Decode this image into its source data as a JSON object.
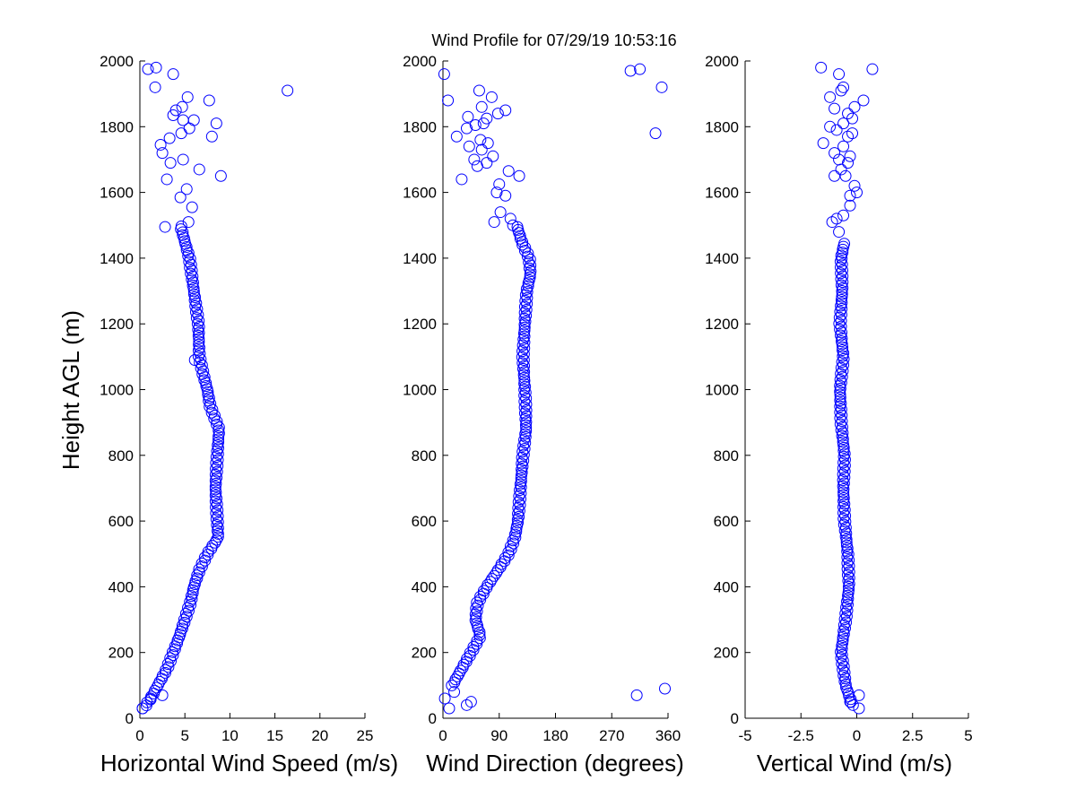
{
  "figure": {
    "title": "Wind Profile for  07/29/19 10:53:16",
    "marker_color": "#0000ff",
    "axis_color": "#000000",
    "background": "#ffffff"
  },
  "chart_data": [
    {
      "type": "scatter",
      "id": "speed",
      "title": "Wind Profile for  07/29/19 10:53:16",
      "xlabel": "Horizontal Wind Speed (m/s)",
      "ylabel": "Height AGL (m)",
      "xlim": [
        0,
        25
      ],
      "ylim": [
        0,
        2000
      ],
      "xticks": [
        0,
        5,
        10,
        15,
        20,
        25
      ],
      "xtick_labels": [
        "0",
        "5",
        "10",
        "15",
        "20",
        "25"
      ],
      "yticks": [
        0,
        200,
        400,
        600,
        800,
        1000,
        1200,
        1400,
        1600,
        1800,
        2000
      ],
      "ytick_labels": [
        "0",
        "200",
        "400",
        "600",
        "800",
        "1000",
        "1200",
        "1400",
        "1600",
        "1800",
        "2000"
      ],
      "marker": "open-circle",
      "profile": [
        [
          30,
          0.4
        ],
        [
          60,
          1.2
        ],
        [
          100,
          2.0
        ],
        [
          150,
          3.0
        ],
        [
          200,
          3.7
        ],
        [
          250,
          4.4
        ],
        [
          300,
          5.0
        ],
        [
          350,
          5.6
        ],
        [
          400,
          6.0
        ],
        [
          450,
          6.6
        ],
        [
          500,
          7.5
        ],
        [
          550,
          8.7
        ],
        [
          600,
          8.6
        ],
        [
          700,
          8.4
        ],
        [
          800,
          8.6
        ],
        [
          880,
          8.8
        ],
        [
          950,
          7.8
        ],
        [
          1000,
          7.5
        ],
        [
          1050,
          7.0
        ],
        [
          1100,
          6.6
        ],
        [
          1200,
          6.5
        ],
        [
          1300,
          6.0
        ],
        [
          1400,
          5.5
        ],
        [
          1450,
          5.0
        ],
        [
          1500,
          4.5
        ]
      ],
      "step": 9,
      "points": [
        [
          0.3,
          30
        ],
        [
          1.2,
          60
        ],
        [
          2.5,
          70
        ],
        [
          6.1,
          1090
        ],
        [
          2.8,
          1495
        ],
        [
          5.4,
          1510
        ],
        [
          5.8,
          1555
        ],
        [
          4.5,
          1585
        ],
        [
          5.2,
          1610
        ],
        [
          3.0,
          1640
        ],
        [
          6.6,
          1670
        ],
        [
          9.0,
          1650
        ],
        [
          4.8,
          1700
        ],
        [
          3.4,
          1690
        ],
        [
          2.5,
          1720
        ],
        [
          2.3,
          1745
        ],
        [
          3.3,
          1765
        ],
        [
          4.6,
          1780
        ],
        [
          5.5,
          1795
        ],
        [
          8.0,
          1770
        ],
        [
          8.5,
          1810
        ],
        [
          4.8,
          1820
        ],
        [
          6.0,
          1820
        ],
        [
          3.7,
          1835
        ],
        [
          4.0,
          1850
        ],
        [
          4.7,
          1860
        ],
        [
          5.3,
          1890
        ],
        [
          7.7,
          1880
        ],
        [
          16.4,
          1910
        ],
        [
          1.7,
          1920
        ],
        [
          3.7,
          1960
        ],
        [
          0.9,
          1975
        ],
        [
          1.8,
          1980
        ]
      ]
    },
    {
      "type": "scatter",
      "id": "direction",
      "xlabel": "Wind Direction (degrees)",
      "ylabel": "",
      "xlim": [
        0,
        360
      ],
      "ylim": [
        0,
        2000
      ],
      "xticks": [
        0,
        90,
        180,
        270,
        360
      ],
      "xtick_labels": [
        "0",
        "90",
        "180",
        "270",
        "360"
      ],
      "yticks": [
        0,
        200,
        400,
        600,
        800,
        1000,
        1200,
        1400,
        1600,
        1800,
        2000
      ],
      "ytick_labels": [
        "0",
        "200",
        "400",
        "600",
        "800",
        "1000",
        "1200",
        "1400",
        "1600",
        "1800",
        "2000"
      ],
      "marker": "open-circle",
      "profile": [
        [
          100,
          15
        ],
        [
          150,
          30
        ],
        [
          200,
          45
        ],
        [
          250,
          60
        ],
        [
          300,
          52
        ],
        [
          350,
          55
        ],
        [
          400,
          70
        ],
        [
          450,
          88
        ],
        [
          500,
          105
        ],
        [
          550,
          115
        ],
        [
          600,
          120
        ],
        [
          700,
          124
        ],
        [
          800,
          128
        ],
        [
          880,
          133
        ],
        [
          950,
          132
        ],
        [
          1000,
          131
        ],
        [
          1100,
          128
        ],
        [
          1200,
          131
        ],
        [
          1300,
          134
        ],
        [
          1350,
          140
        ],
        [
          1400,
          138
        ],
        [
          1450,
          126
        ],
        [
          1500,
          118
        ]
      ],
      "step": 9,
      "points": [
        [
          10,
          30
        ],
        [
          18,
          80
        ],
        [
          3,
          60
        ],
        [
          45,
          50
        ],
        [
          38,
          40
        ],
        [
          310,
          70
        ],
        [
          355,
          90
        ],
        [
          82,
          1510
        ],
        [
          92,
          1540
        ],
        [
          108,
          1520
        ],
        [
          112,
          1500
        ],
        [
          100,
          1590
        ],
        [
          86,
          1600
        ],
        [
          90,
          1625
        ],
        [
          105,
          1665
        ],
        [
          122,
          1650
        ],
        [
          30,
          1640
        ],
        [
          50,
          1700
        ],
        [
          55,
          1680
        ],
        [
          70,
          1690
        ],
        [
          80,
          1710
        ],
        [
          62,
          1730
        ],
        [
          72,
          1750
        ],
        [
          42,
          1740
        ],
        [
          60,
          1760
        ],
        [
          22,
          1770
        ],
        [
          38,
          1795
        ],
        [
          52,
          1805
        ],
        [
          65,
          1810
        ],
        [
          70,
          1825
        ],
        [
          40,
          1830
        ],
        [
          88,
          1840
        ],
        [
          100,
          1850
        ],
        [
          62,
          1860
        ],
        [
          78,
          1890
        ],
        [
          58,
          1910
        ],
        [
          8,
          1880
        ],
        [
          340,
          1780
        ],
        [
          350,
          1920
        ],
        [
          300,
          1970
        ],
        [
          315,
          1975
        ],
        [
          2,
          1960
        ]
      ]
    },
    {
      "type": "scatter",
      "id": "vertical",
      "xlabel": "Vertical Wind (m/s)",
      "ylabel": "",
      "xlim": [
        -5,
        5
      ],
      "ylim": [
        0,
        2000
      ],
      "xticks": [
        -5,
        -2.5,
        0,
        2.5,
        5
      ],
      "xtick_labels": [
        "-5",
        "-2.5",
        "0",
        "2.5",
        "5"
      ],
      "yticks": [
        0,
        200,
        400,
        600,
        800,
        1000,
        1200,
        1400,
        1600,
        1800,
        2000
      ],
      "ytick_labels": [
        "0",
        "200",
        "400",
        "600",
        "800",
        "1000",
        "1200",
        "1400",
        "1600",
        "1800",
        "2000"
      ],
      "marker": "open-circle",
      "profile": [
        [
          40,
          -0.2
        ],
        [
          100,
          -0.5
        ],
        [
          150,
          -0.6
        ],
        [
          200,
          -0.7
        ],
        [
          250,
          -0.6
        ],
        [
          300,
          -0.5
        ],
        [
          400,
          -0.35
        ],
        [
          500,
          -0.4
        ],
        [
          600,
          -0.55
        ],
        [
          700,
          -0.6
        ],
        [
          800,
          -0.55
        ],
        [
          900,
          -0.7
        ],
        [
          1000,
          -0.75
        ],
        [
          1100,
          -0.6
        ],
        [
          1200,
          -0.75
        ],
        [
          1300,
          -0.65
        ],
        [
          1400,
          -0.7
        ],
        [
          1450,
          -0.55
        ]
      ],
      "step": 9,
      "points": [
        [
          0.1,
          30
        ],
        [
          0.1,
          70
        ],
        [
          -0.3,
          50
        ],
        [
          -0.8,
          1480
        ],
        [
          -1.1,
          1510
        ],
        [
          -0.6,
          1530
        ],
        [
          -0.9,
          1520
        ],
        [
          -0.3,
          1560
        ],
        [
          -0.3,
          1590
        ],
        [
          0.0,
          1600
        ],
        [
          -0.1,
          1620
        ],
        [
          -0.5,
          1650
        ],
        [
          -1.0,
          1650
        ],
        [
          -0.7,
          1670
        ],
        [
          -0.4,
          1690
        ],
        [
          -0.8,
          1700
        ],
        [
          -0.3,
          1710
        ],
        [
          -1.0,
          1720
        ],
        [
          -0.6,
          1740
        ],
        [
          -1.5,
          1750
        ],
        [
          -0.4,
          1770
        ],
        [
          -0.2,
          1780
        ],
        [
          -0.9,
          1790
        ],
        [
          -0.6,
          1810
        ],
        [
          -1.2,
          1800
        ],
        [
          -0.2,
          1825
        ],
        [
          -0.4,
          1840
        ],
        [
          -1.0,
          1855
        ],
        [
          -0.1,
          1860
        ],
        [
          0.3,
          1880
        ],
        [
          -1.2,
          1890
        ],
        [
          -0.7,
          1910
        ],
        [
          -0.6,
          1920
        ],
        [
          -0.8,
          1960
        ],
        [
          -1.6,
          1980
        ],
        [
          0.7,
          1975
        ]
      ]
    }
  ]
}
